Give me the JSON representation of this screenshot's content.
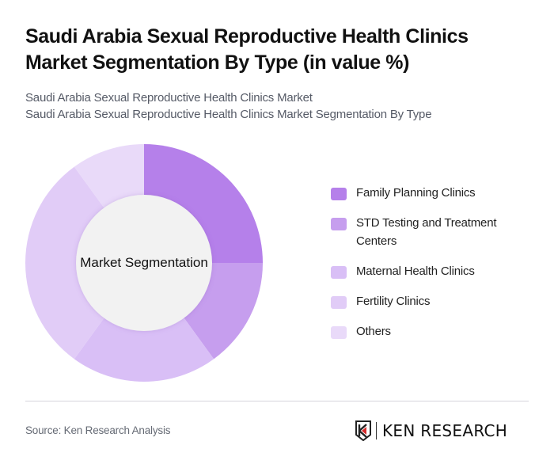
{
  "header": {
    "title": "Saudi Arabia Sexual Reproductive Health Clinics Market Segmentation By Type (in value %)",
    "subtitle_line1": "Saudi Arabia Sexual Reproductive Health Clinics Market",
    "subtitle_line2": "Saudi Arabia Sexual Reproductive Health Clinics Market Segmentation By Type"
  },
  "chart_center_label": "Market Segmentation",
  "legend": [
    {
      "label": "Family Planning Clinics",
      "color": "#B580EA"
    },
    {
      "label": "STD Testing and Treatment Centers",
      "color": "#C69EEE"
    },
    {
      "label": "Maternal Health Clinics",
      "color": "#D9BFF6"
    },
    {
      "label": "Fertility Clinics",
      "color": "#E1CCF7"
    },
    {
      "label": "Others",
      "color": "#E9DAF9"
    }
  ],
  "footer": {
    "source": "Source: Ken Research Analysis",
    "logo_text": "KEN RESEARCH"
  },
  "chart_data": {
    "type": "pie",
    "variant": "donut",
    "title": "Saudi Arabia Sexual Reproductive Health Clinics Market Segmentation By Type (in value %)",
    "center_label": "Market Segmentation",
    "categories": [
      "Family Planning Clinics",
      "STD Testing and Treatment Centers",
      "Maternal Health Clinics",
      "Fertility Clinics",
      "Others"
    ],
    "values": [
      25,
      15,
      20,
      30,
      10
    ],
    "colors": [
      "#B580EA",
      "#C69EEE",
      "#D9BFF6",
      "#E1CCF7",
      "#E9DAF9"
    ],
    "start_angle": "12 o'clock, clockwise",
    "legend_position": "right",
    "data_labels": false
  }
}
